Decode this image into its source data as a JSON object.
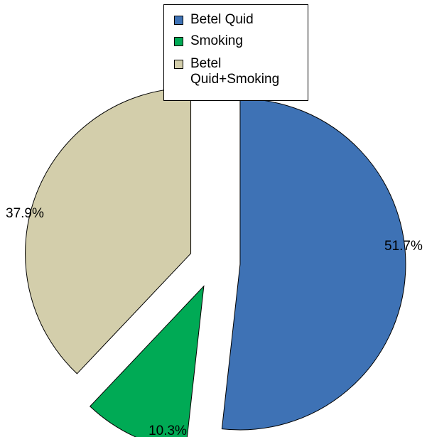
{
  "chart_data": {
    "type": "pie",
    "exploded": true,
    "legend_position": "top",
    "slices": [
      {
        "name": "Betel Quid",
        "value": 51.7,
        "label": "51.7%",
        "color": "#3e72b5"
      },
      {
        "name": "Smoking",
        "value": 10.3,
        "label": "10.3%",
        "color": "#00aa55"
      },
      {
        "name": "Betel Quid+Smoking",
        "value": 37.9,
        "label": "37.9%",
        "color": "#d3ceab"
      }
    ],
    "legend": [
      {
        "label": "Betel Quid",
        "color": "#3e72b5"
      },
      {
        "label": "Smoking",
        "color": "#00aa55"
      },
      {
        "label": "Betel\nQuid+Smoking",
        "color": "#d3ceab"
      }
    ]
  }
}
